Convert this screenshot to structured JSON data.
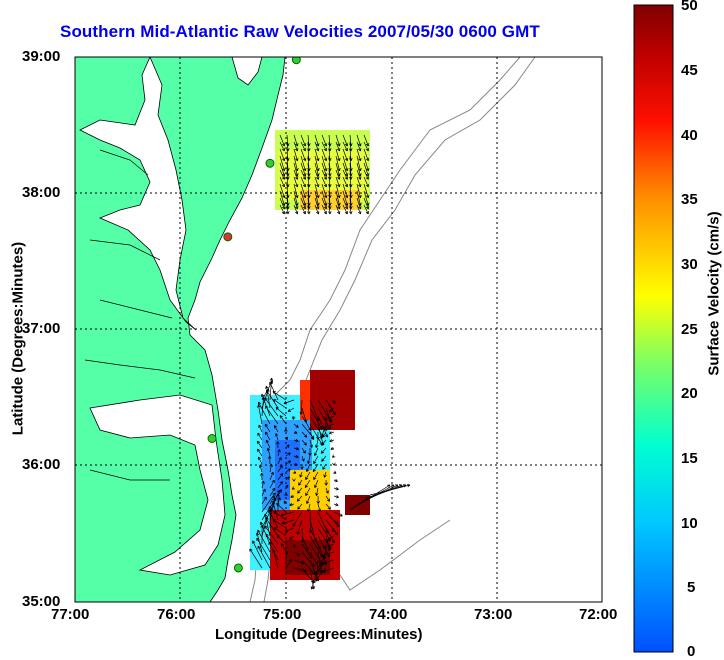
{
  "title": "Southern Mid-Atlantic Raw Velocities 2007/05/30 0600 GMT",
  "x_axis": {
    "label": "Longitude (Degrees:Minutes)",
    "ticks": [
      "77:00",
      "76:00",
      "75:00",
      "74:00",
      "73:00",
      "72:00"
    ]
  },
  "y_axis": {
    "label": "Latitude (Degrees:Minutes)",
    "ticks": [
      "39:00",
      "38:00",
      "37:00",
      "36:00",
      "35:00"
    ]
  },
  "colorbar": {
    "label": "Surface Velocity (cm/s)",
    "ticks": [
      "50",
      "45",
      "40",
      "35",
      "30",
      "25",
      "20",
      "15",
      "10",
      "5",
      "0"
    ],
    "min": 0,
    "max": 50
  },
  "colors": {
    "land": "#55ffa8",
    "water": "#ffffff",
    "title": "#0000ee",
    "coastline": "#000000",
    "bathymetry": "#888888",
    "station": "#33cc33",
    "station_alt": "#dd3333"
  },
  "map_extent": {
    "lon": [
      -77,
      -72
    ],
    "lat": [
      35,
      39
    ]
  },
  "stations": [
    {
      "lon": -74.9,
      "lat": 38.98,
      "color": "station"
    },
    {
      "lon": -75.15,
      "lat": 38.22,
      "color": "station"
    },
    {
      "lon": -75.55,
      "lat": 37.68,
      "color": "station_alt"
    },
    {
      "lon": -75.7,
      "lat": 36.2,
      "color": "station"
    },
    {
      "lon": -75.45,
      "lat": 35.25,
      "color": "station"
    }
  ]
}
